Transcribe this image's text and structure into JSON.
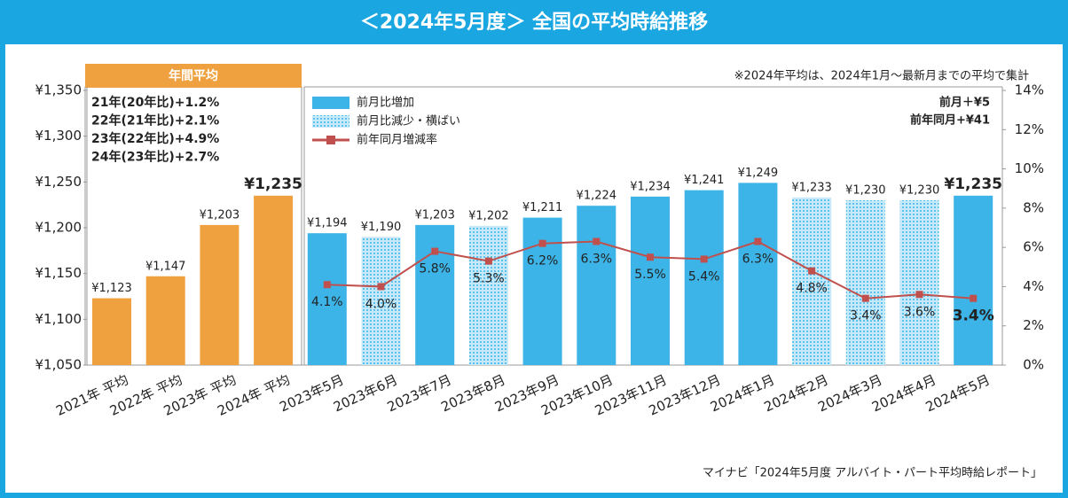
{
  "chart_data": {
    "type": "bar",
    "title": "＜2024年5月度＞ 全国の平均時給推移",
    "note": "※2024年平均は、2024年1月～最新月までの平均で集計",
    "source": "マイナビ「2024年5月度 アルバイト・パート平均時給レポート」",
    "annual_notes": [
      "21年(20年比)+1.2%",
      "22年(21年比)+2.1%",
      "23年(22年比)+4.9%",
      "24年(23年比)+2.7%"
    ],
    "summary": [
      "前月＋¥5",
      "前年同月+¥41"
    ],
    "categories": [
      "2021年 平均",
      "2022年 平均",
      "2023年 平均",
      "2024年 平均",
      "2023年5月",
      "2023年6月",
      "2023年7月",
      "2023年8月",
      "2023年9月",
      "2023年10月",
      "2023年11月",
      "2023年12月",
      "2024年1月",
      "2024年2月",
      "2024年3月",
      "2024年4月",
      "2024年5月"
    ],
    "ylim": [
      1050,
      1350
    ],
    "yticks": [
      {
        "value": 1050,
        "label": "¥1,050"
      },
      {
        "value": 1100,
        "label": "¥1,100"
      },
      {
        "value": 1150,
        "label": "¥1,150"
      },
      {
        "value": 1200,
        "label": "¥1,200"
      },
      {
        "value": 1250,
        "label": "¥1,250"
      },
      {
        "value": 1300,
        "label": "¥1,300"
      },
      {
        "value": 1350,
        "label": "¥1,350"
      }
    ],
    "y2lim": [
      0,
      14
    ],
    "y2ticks": [
      {
        "value": 0,
        "label": "0%"
      },
      {
        "value": 2,
        "label": "2%"
      },
      {
        "value": 4,
        "label": "4%"
      },
      {
        "value": 6,
        "label": "6%"
      },
      {
        "value": 8,
        "label": "8%"
      },
      {
        "value": 10,
        "label": "10%"
      },
      {
        "value": 12,
        "label": "12%"
      },
      {
        "value": 14,
        "label": "14%"
      }
    ],
    "series": [
      {
        "name": "年間平均",
        "type": "bar",
        "color": "#f0a13f",
        "values": [
          1123,
          1147,
          1203,
          1235,
          null,
          null,
          null,
          null,
          null,
          null,
          null,
          null,
          null,
          null,
          null,
          null,
          null
        ],
        "value_labels": [
          "¥1,123",
          "¥1,147",
          "¥1,203",
          "¥1,235",
          null,
          null,
          null,
          null,
          null,
          null,
          null,
          null,
          null,
          null,
          null,
          null,
          null
        ]
      },
      {
        "name": "前月比増加",
        "type": "bar",
        "color": "#3cb4e7",
        "values": [
          null,
          null,
          null,
          null,
          1194,
          null,
          1203,
          null,
          1211,
          1224,
          1234,
          1241,
          1249,
          null,
          null,
          null,
          1235
        ],
        "value_labels": [
          null,
          null,
          null,
          null,
          "¥1,194",
          null,
          "¥1,203",
          null,
          "¥1,211",
          "¥1,224",
          "¥1,234",
          "¥1,241",
          "¥1,249",
          null,
          null,
          null,
          "¥1,235"
        ]
      },
      {
        "name": "前月比減少・横ばい",
        "type": "bar",
        "color": "#3cb4e7",
        "pattern": "dots",
        "values": [
          null,
          null,
          null,
          null,
          null,
          1190,
          null,
          1202,
          null,
          null,
          null,
          null,
          null,
          1233,
          1230,
          1230,
          null
        ],
        "value_labels": [
          null,
          null,
          null,
          null,
          null,
          "¥1,190",
          null,
          "¥1,202",
          null,
          null,
          null,
          null,
          null,
          "¥1,233",
          "¥1,230",
          "¥1,230",
          null
        ]
      },
      {
        "name": "前年同月増減率",
        "type": "line",
        "axis": "y2",
        "color": "#c0504d",
        "values": [
          null,
          null,
          null,
          null,
          4.1,
          4.0,
          5.8,
          5.3,
          6.2,
          6.3,
          5.5,
          5.4,
          6.3,
          4.8,
          3.4,
          3.6,
          3.4
        ],
        "value_labels": [
          null,
          null,
          null,
          null,
          "4.1%",
          "4.0%",
          "5.8%",
          "5.3%",
          "6.2%",
          "6.3%",
          "5.5%",
          "5.4%",
          "6.3%",
          "4.8%",
          "3.4%",
          "3.6%",
          "3.4%"
        ]
      }
    ]
  }
}
